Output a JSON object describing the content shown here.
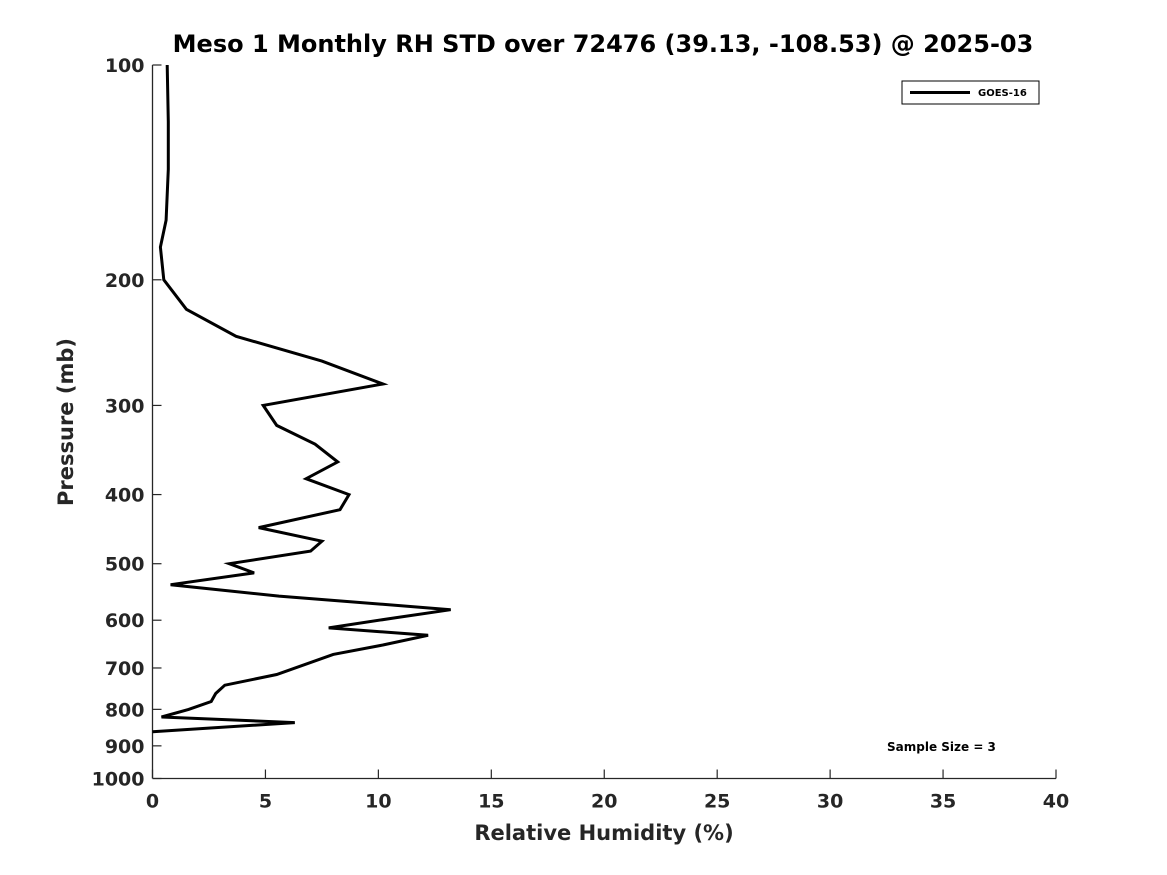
{
  "chart_data": {
    "type": "line",
    "title": "Meso 1 Monthly RH STD over 72476 (39.13, -108.53) @ 2025-03",
    "xlabel": "Relative Humidity (%)",
    "ylabel": "Pressure (mb)",
    "xlim": [
      0,
      40
    ],
    "ylim": [
      100,
      1000
    ],
    "yscale": "log",
    "y_reversed": true,
    "xticks": [
      "0",
      "5",
      "10",
      "15",
      "20",
      "25",
      "30",
      "35",
      "40"
    ],
    "yticks": [
      "100",
      "200",
      "300",
      "400",
      "500",
      "600",
      "700",
      "800",
      "900",
      "1000"
    ],
    "legend_position": "top-right",
    "annotation": "Sample Size = 3",
    "series": [
      {
        "name": "GOES-16",
        "color": "#000000",
        "points": [
          {
            "x": 0.65,
            "p": 100
          },
          {
            "x": 0.7,
            "p": 120
          },
          {
            "x": 0.7,
            "p": 140
          },
          {
            "x": 0.6,
            "p": 165
          },
          {
            "x": 0.35,
            "p": 180
          },
          {
            "x": 0.5,
            "p": 200
          },
          {
            "x": 1.5,
            "p": 220
          },
          {
            "x": 3.7,
            "p": 240
          },
          {
            "x": 7.5,
            "p": 260
          },
          {
            "x": 10.2,
            "p": 280
          },
          {
            "x": 4.9,
            "p": 300
          },
          {
            "x": 5.5,
            "p": 320
          },
          {
            "x": 7.2,
            "p": 340
          },
          {
            "x": 8.2,
            "p": 360
          },
          {
            "x": 6.8,
            "p": 380
          },
          {
            "x": 8.7,
            "p": 400
          },
          {
            "x": 8.3,
            "p": 420
          },
          {
            "x": 4.7,
            "p": 445
          },
          {
            "x": 7.5,
            "p": 465
          },
          {
            "x": 7.0,
            "p": 480
          },
          {
            "x": 3.4,
            "p": 500
          },
          {
            "x": 4.5,
            "p": 515
          },
          {
            "x": 0.8,
            "p": 535
          },
          {
            "x": 5.6,
            "p": 555
          },
          {
            "x": 13.2,
            "p": 580
          },
          {
            "x": 10.8,
            "p": 595
          },
          {
            "x": 7.8,
            "p": 615
          },
          {
            "x": 12.2,
            "p": 630
          },
          {
            "x": 10.2,
            "p": 650
          },
          {
            "x": 8.0,
            "p": 670
          },
          {
            "x": 5.5,
            "p": 715
          },
          {
            "x": 3.2,
            "p": 740
          },
          {
            "x": 2.8,
            "p": 760
          },
          {
            "x": 2.6,
            "p": 780
          },
          {
            "x": 1.6,
            "p": 800
          },
          {
            "x": 0.4,
            "p": 820
          },
          {
            "x": 6.3,
            "p": 835
          },
          {
            "x": 0.0,
            "p": 860
          }
        ]
      }
    ]
  }
}
